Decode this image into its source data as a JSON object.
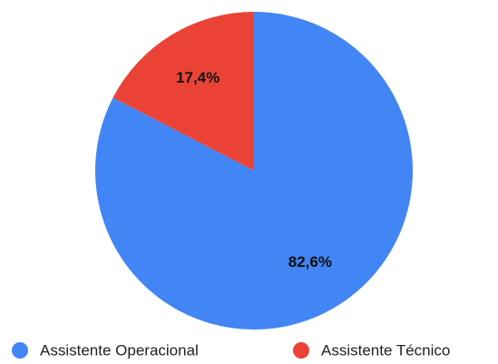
{
  "chart_data": {
    "type": "pie",
    "categories": [
      "Assistente Operacional",
      "Assistente Técnico"
    ],
    "values": [
      82.6,
      17.4
    ],
    "value_labels": [
      "82,6%",
      "17,4%"
    ],
    "colors": [
      "#4285f4",
      "#ea4335"
    ],
    "legend": "bottom"
  }
}
